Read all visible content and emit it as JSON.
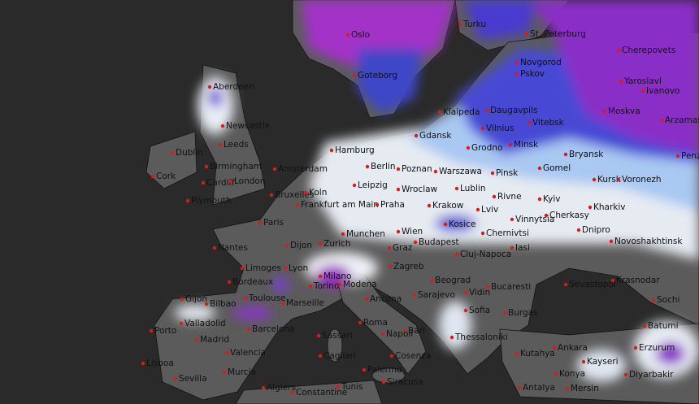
{
  "cities": [
    "Oslo",
    "Turku",
    "St. Peterburg",
    "Novgorod",
    "Cherepovets",
    "Yaroslavl",
    "Ivanovo",
    "Moskva",
    "Arzamas",
    "Penza",
    "Pskov",
    "Daugavpils",
    "Vitebsk",
    "Vilnius",
    "Klaipeda",
    "Gdansk",
    "Grodno",
    "Minsk",
    "Bryansk",
    "Kursk",
    "Voronezh",
    "Goteborg",
    "Aberdeen",
    "Newcastle",
    "Dublin",
    "Leeds",
    "Cork",
    "Birmingham",
    "Cardiff",
    "London",
    "Plymouth",
    "Amsterdam",
    "Hamburg",
    "Berlin",
    "Poznan",
    "Warszawa",
    "Pinsk",
    "Gomel",
    "Bruxelles",
    "Koln",
    "Leipzig",
    "Wroclaw",
    "Lublin",
    "Rivne",
    "Kyiv",
    "Kharkiv",
    "Frankfurt am Main",
    "Praha",
    "Krakow",
    "Lviv",
    "Vinnytsia",
    "Cherkasy",
    "Paris",
    "Kosice",
    "Chernivtsi",
    "Dnipro",
    "Novoshakhtinsk",
    "Nantes",
    "Munchen",
    "Wien",
    "Budapest",
    "Iasi",
    "Dijon",
    "Zurich",
    "Graz",
    "Cluj-Napoca",
    "Limoges",
    "Lyon",
    "Milano",
    "Zagreb",
    "Sevastopol",
    "Krasnodar",
    "Bordeaux",
    "Torino",
    "Modena",
    "Beograd",
    "Bucaresti",
    "Vidin",
    "Toulouse",
    "Marseille",
    "Sarajevo",
    "Ancona",
    "Burgas",
    "Sochi",
    "Gijon",
    "Bilbao",
    "Sofia",
    "Valladolid",
    "Barcelona",
    "Roma",
    "Bari",
    "Batumi",
    "Porto",
    "Madrid",
    "Napoli",
    "Thessaloniki",
    "Sassari",
    "Ankara",
    "Erzurum",
    "Valencia",
    "Cagliari",
    "Kutahya",
    "Kayseri",
    "Lisboa",
    "Cosenza",
    "Murcia",
    "Palermo",
    "Konya",
    "Diyarbakir",
    "Sevilla",
    "Siracusa",
    "Antalya",
    "Mersin",
    "Algiers",
    "Constantine",
    "Tunis"
  ]
}
